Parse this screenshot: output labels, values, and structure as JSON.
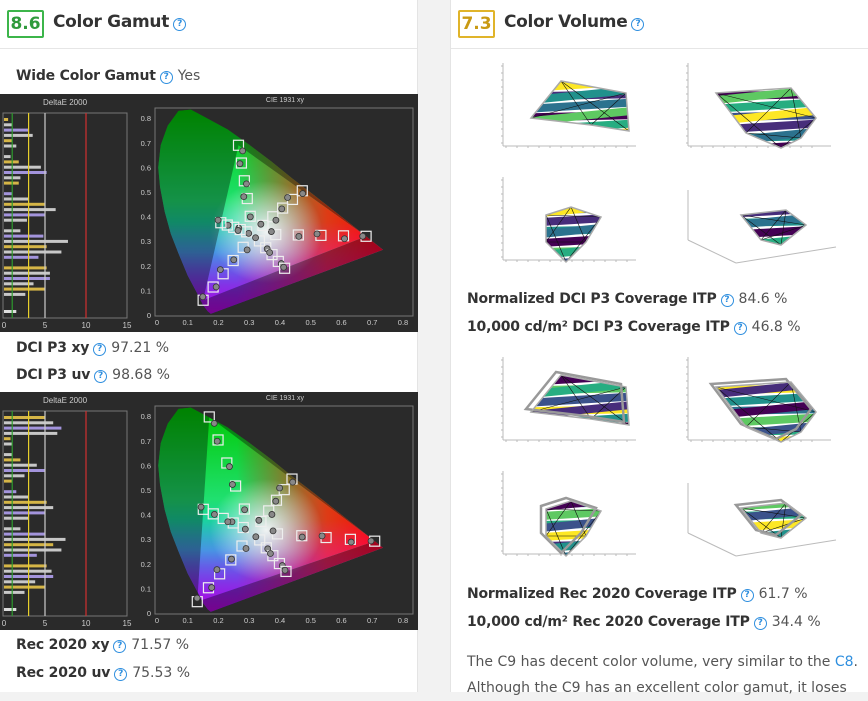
{
  "left": {
    "score": "8.6",
    "title": "Color Gamut",
    "score_color": "#3cb54a",
    "wide_color_gamut": {
      "label": "Wide Color Gamut",
      "value": "Yes"
    },
    "dci_p3_xy": {
      "label": "DCI P3 xy",
      "value": "97.21 %"
    },
    "dci_p3_uv": {
      "label": "DCI P3 uv",
      "value": "98.68 %"
    },
    "rec2020_xy": {
      "label": "Rec 2020 xy",
      "value": "71.57 %"
    },
    "rec2020_uv": {
      "label": "Rec 2020 uv",
      "value": "75.53 %"
    }
  },
  "right": {
    "score": "7.3",
    "title": "Color Volume",
    "score_color": "#e0b42a",
    "norm_p3": {
      "label": "Normalized DCI P3 Coverage ITP",
      "value": "84.6 %"
    },
    "abs_p3": {
      "label": "10,000 cd/m² DCI P3 Coverage ITP",
      "value": "46.8 %"
    },
    "norm_2020": {
      "label": "Normalized Rec 2020 Coverage ITP",
      "value": "61.7 %"
    },
    "abs_2020": {
      "label": "10,000 cd/m² Rec 2020 Coverage ITP",
      "value": "34.4 %"
    },
    "paragraph_1": "The C9 has decent color volume, very similar to the ",
    "paragraph_link": "C8",
    "paragraph_2": ". Although the C9 has an excellent color gamut, it loses"
  },
  "help_glyph": "?",
  "chart_data": [
    {
      "type": "scatter",
      "title": "CIE 1931 xy",
      "deltae_title": "DeltaE 2000",
      "deltae_ticks": [
        "0",
        "5",
        "10",
        "15"
      ],
      "deltae_thresholds": [
        1,
        3,
        5,
        10
      ],
      "x_ticks": [
        "0",
        "0.1",
        "0.2",
        "0.3",
        "0.4",
        "0.5",
        "0.6",
        "0.7",
        "0.8"
      ],
      "y_ticks": [
        "0",
        "0.1",
        "0.2",
        "0.3",
        "0.4",
        "0.5",
        "0.6",
        "0.7",
        "0.8"
      ],
      "xlim": [
        0,
        0.8
      ],
      "ylim": [
        0,
        0.85
      ],
      "gamut": [
        [
          0.68,
          0.32
        ],
        [
          0.265,
          0.69
        ],
        [
          0.15,
          0.06
        ]
      ],
      "white": [
        0.3127,
        0.329
      ],
      "deltae_values": [
        0.5,
        1,
        3,
        3.5,
        1,
        1.5,
        0,
        0.8,
        1.8,
        4.5,
        5.2,
        2,
        1.8,
        0,
        1,
        3,
        5,
        6.3,
        5,
        2.8,
        0,
        2,
        4.8,
        7.8,
        5.2,
        7,
        4.2,
        0,
        5.2,
        5.6,
        5.6,
        3.6,
        5,
        2.6
      ]
    },
    {
      "type": "scatter",
      "title": "CIE 1931 xy",
      "deltae_title": "DeltaE 2000",
      "deltae_ticks": [
        "0",
        "5",
        "10",
        "15"
      ],
      "deltae_thresholds": [
        1,
        3,
        5,
        10
      ],
      "x_ticks": [
        "0",
        "0.1",
        "0.2",
        "0.3",
        "0.4",
        "0.5",
        "0.6",
        "0.7",
        "0.8"
      ],
      "y_ticks": [
        "0",
        "0.1",
        "0.2",
        "0.3",
        "0.4",
        "0.5",
        "0.6",
        "0.7",
        "0.8"
      ],
      "xlim": [
        0,
        0.8
      ],
      "ylim": [
        0,
        0.85
      ],
      "gamut": [
        [
          0.708,
          0.292
        ],
        [
          0.17,
          0.797
        ],
        [
          0.131,
          0.046
        ]
      ],
      "white": [
        0.3127,
        0.329
      ],
      "deltae_values": [
        5,
        6,
        7,
        6.5,
        0.8,
        1,
        0,
        1,
        2,
        4,
        5,
        2.5,
        1,
        0,
        1.5,
        3,
        5.2,
        6,
        5,
        3,
        0,
        2,
        5,
        7.5,
        6,
        7,
        4,
        0,
        5.2,
        5.8,
        6,
        3.8,
        5,
        2.5
      ]
    }
  ]
}
